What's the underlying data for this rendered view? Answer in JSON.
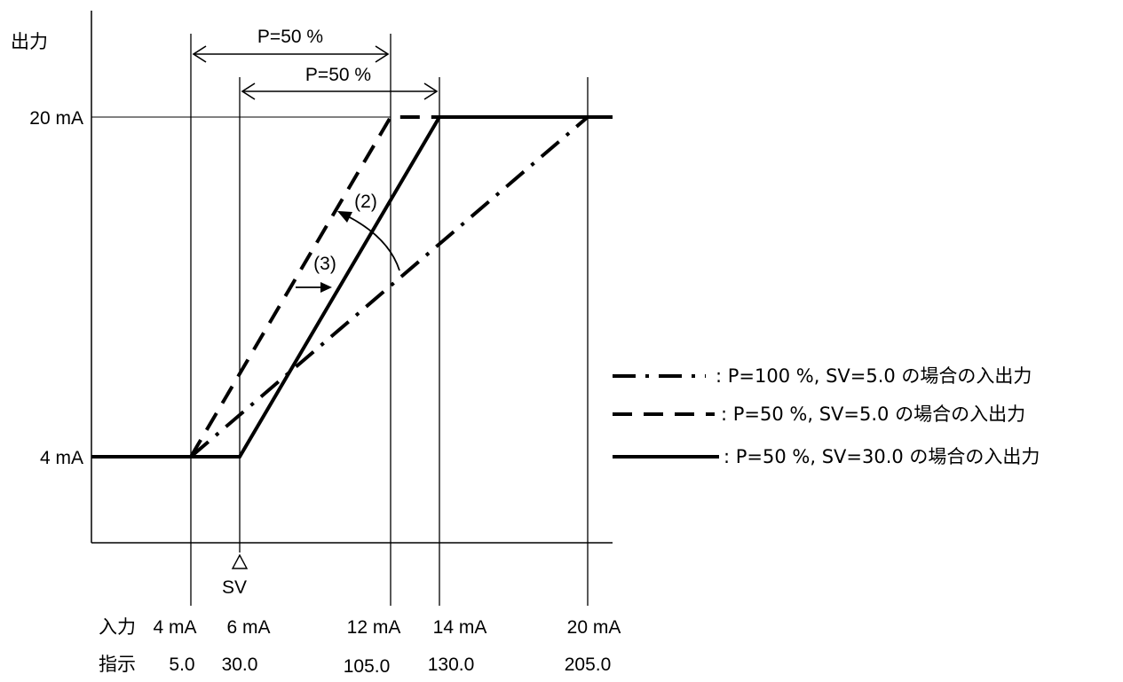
{
  "chart_data": {
    "type": "line",
    "y_axis_label": "出力",
    "y_ticks": [
      "20 mA",
      "4 mA"
    ],
    "x_row_input_label": "入力",
    "x_row_display_label": "指示",
    "x_ticks_input": [
      "4 mA",
      "6 mA",
      "12 mA",
      "14 mA",
      "20 mA"
    ],
    "x_ticks_display": [
      "5.0",
      "30.0",
      "105.0",
      "130.0",
      "205.0"
    ],
    "sv_marker": "SV",
    "band_top": "P=50 %",
    "band_second": "P=50 %",
    "annotation_2": "(2)",
    "annotation_3": "(3)",
    "series": [
      {
        "name": ": P=100 %, SV=5.0 の場合の入出力",
        "style": "dash-dot",
        "x": [
          5.0,
          205.0
        ],
        "y": [
          4,
          20
        ]
      },
      {
        "name": ": P=50 %, SV=5.0 の場合の入出力",
        "style": "dashed",
        "x": [
          5.0,
          105.0,
          130.0
        ],
        "y": [
          4,
          20,
          20
        ]
      },
      {
        "name": ": P=50 %, SV=30.0 の場合の入出力",
        "style": "solid",
        "x": [
          -45.0,
          5.0,
          30.0,
          130.0,
          230.0
        ],
        "y": [
          4,
          4,
          4,
          20,
          20
        ]
      }
    ],
    "line_color": "#000000"
  }
}
